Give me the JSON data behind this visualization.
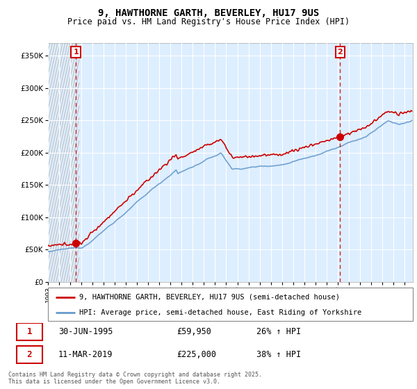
{
  "title1": "9, HAWTHORNE GARTH, BEVERLEY, HU17 9US",
  "title2": "Price paid vs. HM Land Registry's House Price Index (HPI)",
  "legend_line1": "9, HAWTHORNE GARTH, BEVERLEY, HU17 9US (semi-detached house)",
  "legend_line2": "HPI: Average price, semi-detached house, East Riding of Yorkshire",
  "transaction1_date_label": "30-JUN-1995",
  "transaction1_price_label": "£59,950",
  "transaction1_hpi_label": "26% ↑ HPI",
  "transaction1_year": 1995.5,
  "transaction1_price": 59950,
  "transaction2_date_label": "11-MAR-2019",
  "transaction2_price_label": "£225,000",
  "transaction2_hpi_label": "38% ↑ HPI",
  "transaction2_year": 2019.21,
  "transaction2_price": 225000,
  "footer": "Contains HM Land Registry data © Crown copyright and database right 2025.\nThis data is licensed under the Open Government Licence v3.0.",
  "property_color": "#cc0000",
  "hpi_color": "#6699cc",
  "hatch_bg_color": "#d8d8d8",
  "chart_bg_color": "#ddeeff",
  "ylim": [
    0,
    370000
  ],
  "xlim_start": 1993.0,
  "xlim_end": 2025.75
}
